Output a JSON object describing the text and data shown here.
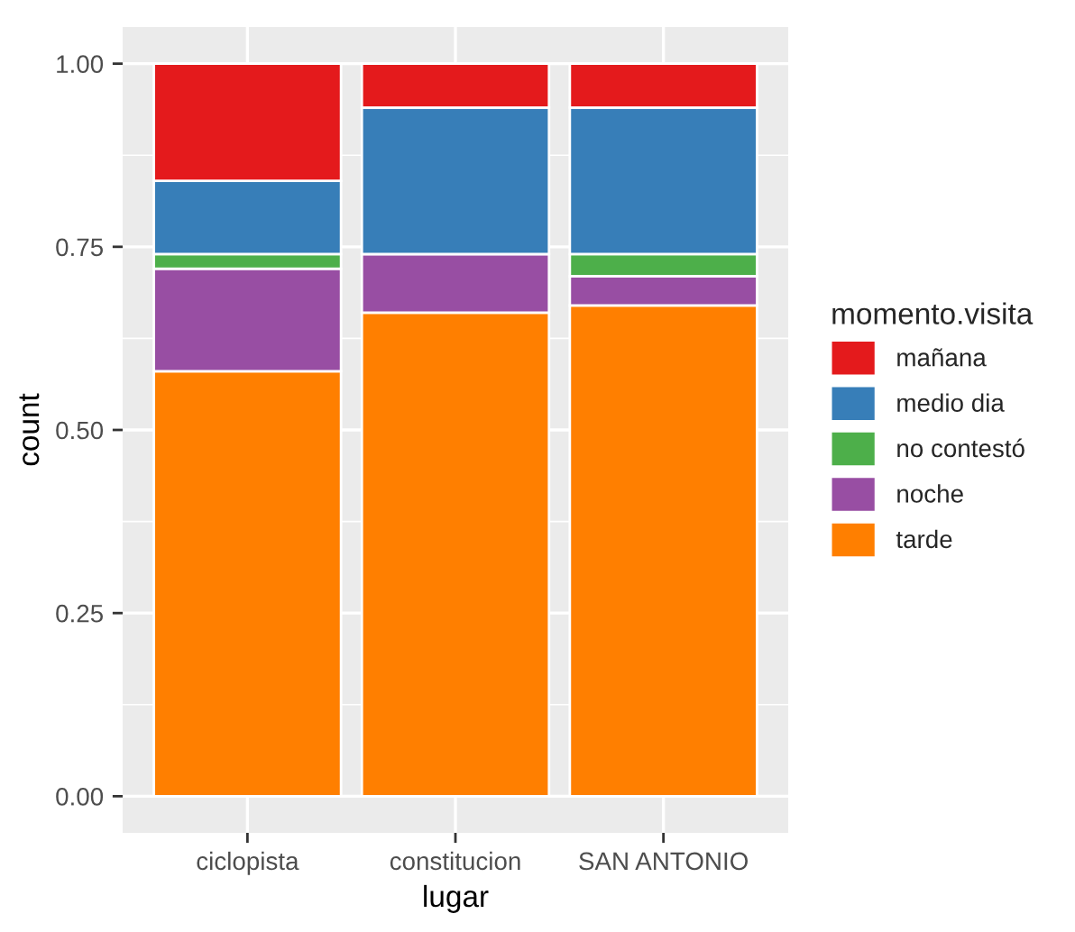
{
  "chart_data": {
    "type": "bar",
    "stacked": true,
    "xlabel": "lugar",
    "ylabel": "count",
    "legend_title": "momento.visita",
    "categories": [
      "ciclopista",
      "constitucion",
      "SAN ANTONIO"
    ],
    "series": [
      {
        "name": "tarde",
        "color": "#ff7f00",
        "values": [
          0.58,
          0.66,
          0.67
        ]
      },
      {
        "name": "noche",
        "color": "#984ea3",
        "values": [
          0.14,
          0.08,
          0.04
        ]
      },
      {
        "name": "no contestó",
        "color": "#4daf4a",
        "values": [
          0.02,
          0,
          0.03
        ]
      },
      {
        "name": "medio dia",
        "color": "#377eb8",
        "values": [
          0.1,
          0.2,
          0.2
        ]
      },
      {
        "name": "mañana",
        "color": "#e41a1c",
        "values": [
          0.16,
          0.06,
          0.06
        ]
      }
    ],
    "ylim": [
      -0.05,
      1.05
    ],
    "yticks": [
      {
        "value": 0,
        "label": "0.00"
      },
      {
        "value": 0.25,
        "label": "0.25"
      },
      {
        "value": 0.5,
        "label": "0.50"
      },
      {
        "value": 0.75,
        "label": "0.75"
      },
      {
        "value": 1,
        "label": "1.00"
      }
    ],
    "grid": true,
    "legend": "right"
  }
}
